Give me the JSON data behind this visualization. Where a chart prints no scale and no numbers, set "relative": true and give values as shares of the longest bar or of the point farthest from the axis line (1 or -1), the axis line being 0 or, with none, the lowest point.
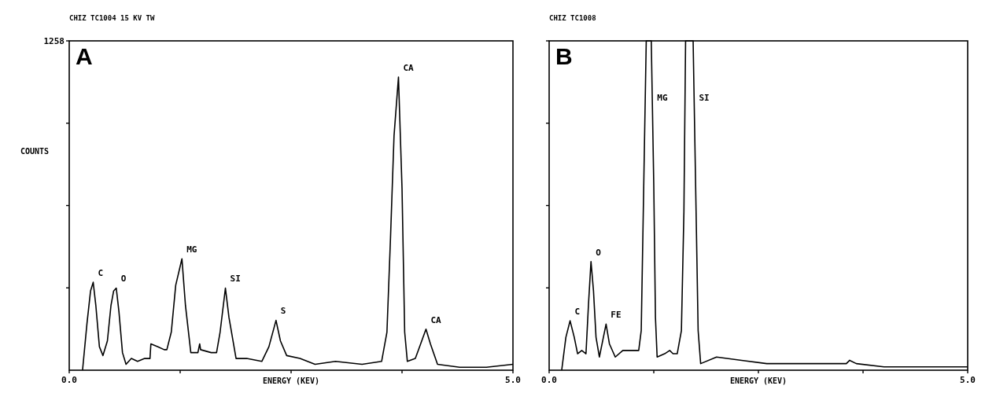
{
  "chart_data": [
    {
      "type": "line",
      "title": "CHIZ TC1004 15 KV TW",
      "xlabel": "ENERGY (KEV)",
      "ylabel": "COUNTS",
      "relative": true,
      "xlim": [
        0,
        5
      ],
      "xticks": [
        {
          "value": 0,
          "label": "0.0"
        },
        {
          "value": 1.25,
          "label": null
        },
        {
          "value": 2.5,
          "label": null
        },
        {
          "value": 3.75,
          "label": null
        },
        {
          "value": 5,
          "label": "5.0"
        }
      ],
      "marker": "none",
      "line_style": "solid",
      "series": [
        {
          "color": "#000000",
          "x": [
            0.15,
            0.2,
            0.24,
            0.27,
            0.3,
            0.34,
            0.38,
            0.43,
            0.47,
            0.5,
            0.53,
            0.56,
            0.6,
            0.64,
            0.7,
            0.77,
            0.85,
            0.91,
            0.92,
            1.0,
            1.07,
            1.1,
            1.15,
            1.2,
            1.27,
            1.31,
            1.37,
            1.45,
            1.47,
            1.48,
            1.6,
            1.66,
            1.7,
            1.76,
            1.8,
            1.88,
            2.0,
            2.17,
            2.25,
            2.33,
            2.38,
            2.45,
            2.6,
            2.77,
            3.0,
            3.3,
            3.52,
            3.58,
            3.62,
            3.66,
            3.71,
            3.75,
            3.78,
            3.81,
            3.9,
            3.96,
            4.02,
            4.07,
            4.15,
            4.4,
            4.7,
            5.0
          ],
          "values": [
            0,
            0.16,
            0.27,
            0.3,
            0.22,
            0.08,
            0.05,
            0.1,
            0.22,
            0.27,
            0.28,
            0.2,
            0.06,
            0.02,
            0.04,
            0.03,
            0.04,
            0.04,
            0.09,
            0.08,
            0.07,
            0.07,
            0.13,
            0.29,
            0.38,
            0.22,
            0.06,
            0.06,
            0.09,
            0.07,
            0.06,
            0.06,
            0.13,
            0.28,
            0.18,
            0.04,
            0.04,
            0.03,
            0.08,
            0.17,
            0.1,
            0.05,
            0.04,
            0.02,
            0.03,
            0.02,
            0.03,
            0.13,
            0.45,
            0.8,
            1,
            0.62,
            0.13,
            0.03,
            0.04,
            0.09,
            0.14,
            0.09,
            0.02,
            0.01,
            0.01,
            0.02
          ]
        }
      ],
      "annotations": [
        "A",
        "1258",
        {
          "text": "C",
          "x": 0.27,
          "y": 0.3
        },
        {
          "text": "O",
          "x": 0.53,
          "y": 0.28
        },
        {
          "text": "MG",
          "x": 1.27,
          "y": 0.38
        },
        {
          "text": "SI",
          "x": 1.76,
          "y": 0.28
        },
        {
          "text": "S",
          "x": 2.33,
          "y": 0.17
        },
        {
          "text": "CA",
          "x": 3.71,
          "y": 1
        },
        {
          "text": "CA",
          "x": 4.02,
          "y": 0.14
        }
      ]
    },
    {
      "type": "line",
      "title": "CHIZ TC1008",
      "xlabel": "ENERGY (KEV)",
      "relative": true,
      "xlim": [
        0,
        5
      ],
      "xticks": [
        {
          "value": 0,
          "label": "0.0"
        },
        {
          "value": 1.25,
          "label": null
        },
        {
          "value": 2.5,
          "label": null
        },
        {
          "value": 3.75,
          "label": null
        },
        {
          "value": 5,
          "label": "5.0"
        }
      ],
      "marker": "none",
      "line_style": "solid",
      "series": [
        {
          "color": "#000000",
          "x": [
            0.15,
            0.2,
            0.25,
            0.3,
            0.34,
            0.39,
            0.44,
            0.47,
            0.5,
            0.53,
            0.56,
            0.6,
            0.64,
            0.68,
            0.72,
            0.79,
            0.88,
            1.0,
            1.07,
            1.1,
            1.13,
            1.16,
            1.22,
            1.25,
            1.27,
            1.29,
            1.38,
            1.44,
            1.48,
            1.53,
            1.58,
            1.61,
            1.63,
            1.72,
            1.75,
            1.78,
            1.81,
            2.0,
            2.3,
            2.6,
            3.12,
            3.55,
            3.59,
            3.67,
            4.0,
            4.33,
            4.78,
            5.0
          ],
          "values": [
            0,
            0.1,
            0.15,
            0.1,
            0.05,
            0.06,
            0.05,
            0.2,
            0.33,
            0.24,
            0.1,
            0.04,
            0.09,
            0.14,
            0.08,
            0.04,
            0.06,
            0.06,
            0.06,
            0.12,
            0.56,
            1,
            1,
            0.56,
            0.16,
            0.04,
            0.05,
            0.06,
            0.05,
            0.05,
            0.12,
            0.48,
            1,
            1,
            0.56,
            0.12,
            0.02,
            0.04,
            0.03,
            0.02,
            0.02,
            0.02,
            0.03,
            0.02,
            0.01,
            0.01,
            0.01,
            0.01
          ]
        }
      ],
      "annotations": [
        "B",
        {
          "text": "C",
          "x": 0.25,
          "y": 0.15
        },
        {
          "text": "O",
          "x": 0.5,
          "y": 0.33
        },
        {
          "text": "FE",
          "x": 0.68,
          "y": 0.14
        },
        {
          "text": "MG",
          "x": 1.234,
          "y": 0.8
        },
        {
          "text": "SI",
          "x": 1.734,
          "y": 0.8
        }
      ]
    }
  ]
}
